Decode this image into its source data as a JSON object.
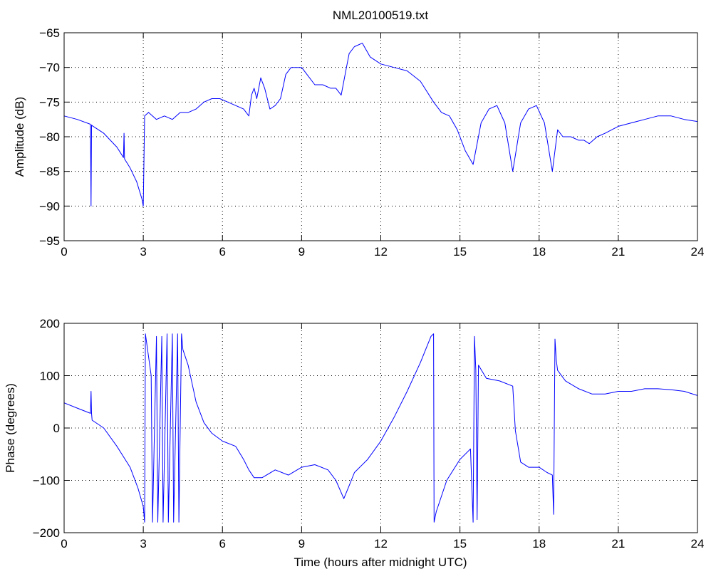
{
  "chart_data": [
    {
      "type": "line",
      "title": "NML20100519.txt",
      "xlabel": "",
      "ylabel": "Amplitude (dB)",
      "xlim": [
        0,
        24
      ],
      "ylim": [
        -95,
        -65
      ],
      "xticks": [
        0,
        3,
        6,
        9,
        12,
        15,
        18,
        21,
        24
      ],
      "yticks": [
        -95,
        -90,
        -85,
        -80,
        -75,
        -70,
        -65
      ],
      "grid": true,
      "line_color": "#0000ff",
      "series": [
        {
          "x": [
            0,
            0.5,
            1.0,
            1.02,
            1.04,
            1.06,
            1.5,
            2.0,
            2.25,
            2.27,
            2.29,
            2.5,
            2.75,
            2.95,
            3.0,
            3.05,
            3.2,
            3.5,
            3.8,
            4.1,
            4.4,
            4.7,
            5.0,
            5.3,
            5.6,
            5.9,
            6.2,
            6.5,
            6.8,
            7.0,
            7.1,
            7.2,
            7.3,
            7.45,
            7.6,
            7.8,
            8.0,
            8.2,
            8.4,
            8.6,
            8.8,
            9.0,
            9.2,
            9.5,
            9.8,
            10.1,
            10.3,
            10.5,
            10.7,
            10.8,
            11.0,
            11.3,
            11.6,
            12.0,
            12.5,
            13.0,
            13.5,
            14.0,
            14.3,
            14.6,
            14.9,
            15.2,
            15.5,
            15.8,
            16.1,
            16.4,
            16.7,
            17.0,
            17.3,
            17.6,
            17.9,
            18.2,
            18.5,
            18.7,
            18.9,
            19.2,
            19.5,
            19.7,
            19.9,
            20.2,
            20.5,
            21.0,
            21.5,
            22.0,
            22.5,
            23.0,
            23.5,
            24.0
          ],
          "y": [
            -77,
            -77.5,
            -78.2,
            -90,
            -78.3,
            -78.4,
            -79.5,
            -81.5,
            -83,
            -79.5,
            -83.2,
            -84.5,
            -86.5,
            -89,
            -90,
            -77,
            -76.5,
            -77.5,
            -77,
            -77.5,
            -76.5,
            -76.5,
            -76,
            -75,
            -74.5,
            -74.5,
            -75,
            -75.5,
            -76,
            -77,
            -74,
            -73,
            -74.5,
            -71.5,
            -73,
            -76,
            -75.5,
            -74.5,
            -71,
            -70,
            -70,
            -70,
            -71,
            -72.5,
            -72.5,
            -73,
            -73,
            -74,
            -70,
            -68,
            -67,
            -66.5,
            -68.5,
            -69.5,
            -70,
            -70.5,
            -72,
            -75,
            -76.5,
            -77,
            -79,
            -82,
            -84,
            -78,
            -76,
            -75.5,
            -78,
            -85,
            -78,
            -76,
            -75.5,
            -78,
            -85,
            -79,
            -80,
            -80,
            -80.5,
            -80.5,
            -81,
            -80,
            -79.5,
            -78.5,
            -78,
            -77.5,
            -77,
            -77,
            -77.5,
            -77.8
          ]
        }
      ]
    },
    {
      "type": "line",
      "title": "",
      "xlabel": "Time (hours after midnight UTC)",
      "ylabel": "Phase (degrees)",
      "xlim": [
        0,
        24
      ],
      "ylim": [
        -200,
        200
      ],
      "xticks": [
        0,
        3,
        6,
        9,
        12,
        15,
        18,
        21,
        24
      ],
      "yticks": [
        -200,
        -100,
        0,
        100,
        200
      ],
      "grid": true,
      "line_color": "#0000ff",
      "series": [
        {
          "x": [
            0,
            0.5,
            1.0,
            1.02,
            1.04,
            1.06,
            1.5,
            2.0,
            2.5,
            2.8,
            3.0,
            3.05,
            3.08,
            3.3,
            3.35,
            3.5,
            3.55,
            3.7,
            3.75,
            3.9,
            3.95,
            4.1,
            4.15,
            4.3,
            4.35,
            4.45,
            4.5,
            4.7,
            5.0,
            5.3,
            5.6,
            6.0,
            6.5,
            6.8,
            7.0,
            7.2,
            7.5,
            8.0,
            8.5,
            9.0,
            9.5,
            10.0,
            10.3,
            10.6,
            10.8,
            11.0,
            11.5,
            12.0,
            12.5,
            13.0,
            13.5,
            13.9,
            14.0,
            14.02,
            14.1,
            14.5,
            15.0,
            15.4,
            15.5,
            15.55,
            15.6,
            15.65,
            15.7,
            16.0,
            16.5,
            17.0,
            17.1,
            17.3,
            17.6,
            18.0,
            18.3,
            18.5,
            18.55,
            18.6,
            18.65,
            18.7,
            19.0,
            19.5,
            20.0,
            20.5,
            21.0,
            21.5,
            22.0,
            22.5,
            23.0,
            23.5,
            24.0
          ],
          "y": [
            48,
            38,
            28,
            70,
            28,
            15,
            0,
            -35,
            -75,
            -115,
            -150,
            -180,
            180,
            100,
            -180,
            175,
            -180,
            175,
            -180,
            180,
            -180,
            180,
            -180,
            180,
            -180,
            180,
            150,
            120,
            50,
            10,
            -10,
            -25,
            -35,
            -60,
            -80,
            -95,
            -95,
            -80,
            -90,
            -75,
            -70,
            -80,
            -100,
            -135,
            -110,
            -85,
            -60,
            -25,
            20,
            70,
            125,
            175,
            180,
            -180,
            -160,
            -100,
            -60,
            -40,
            -180,
            175,
            110,
            -175,
            120,
            95,
            90,
            80,
            -5,
            -65,
            -75,
            -75,
            -85,
            -90,
            -165,
            170,
            130,
            110,
            90,
            75,
            65,
            65,
            70,
            70,
            75,
            75,
            73,
            70,
            62
          ]
        }
      ]
    }
  ]
}
